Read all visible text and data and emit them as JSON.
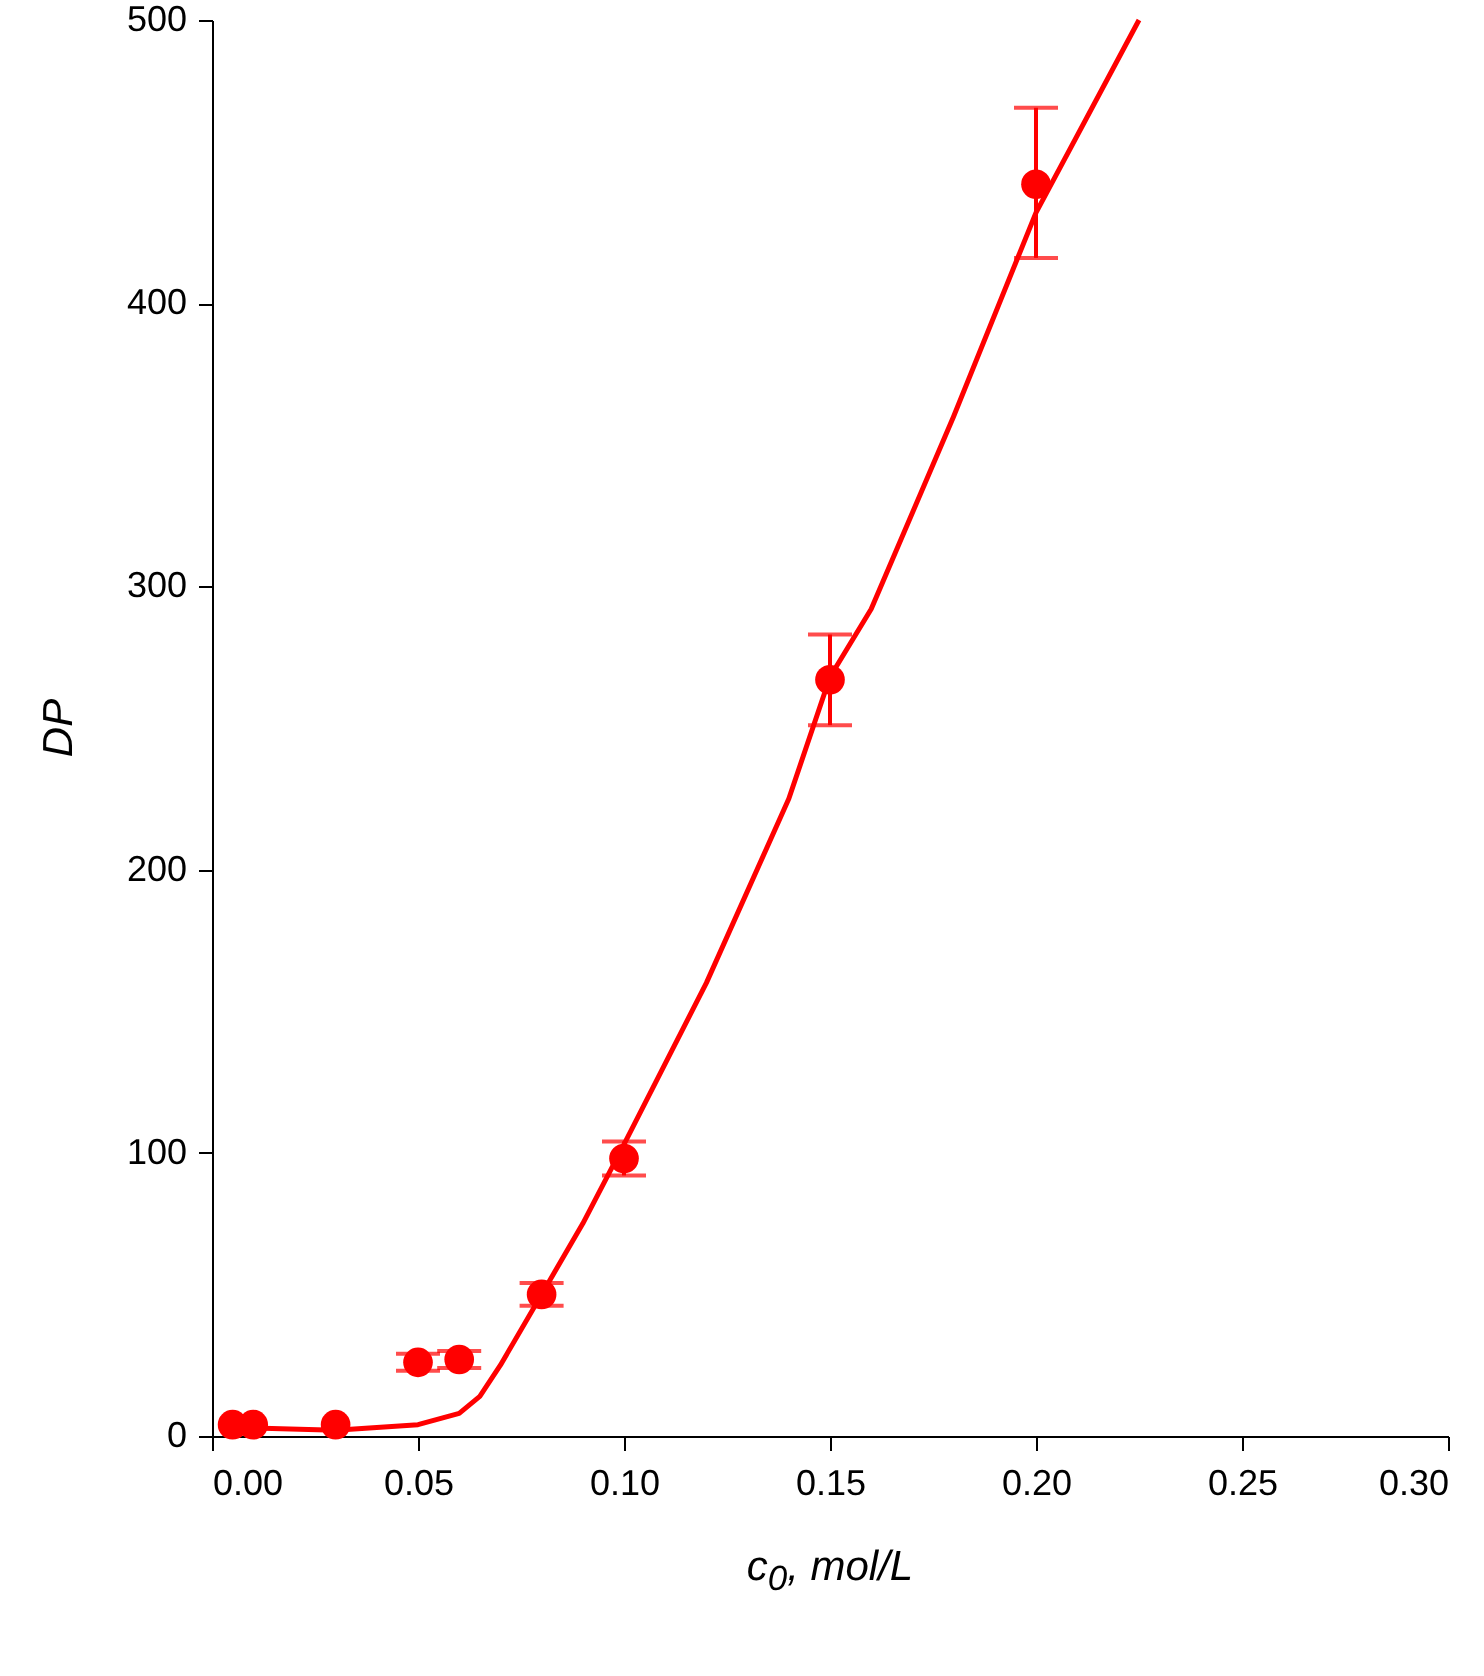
{
  "chart_data": {
    "type": "scatter",
    "xlabel": "c$_{0}$, mol/L",
    "ylabel": "DP",
    "xlim": [
      0,
      0.3
    ],
    "ylim": [
      0,
      500
    ],
    "xticks": [
      {
        "value": 0,
        "label": "0.00"
      },
      {
        "value": 0.05,
        "label": "0.05"
      },
      {
        "value": 0.1,
        "label": "0.10"
      },
      {
        "value": 0.15,
        "label": "0.15"
      },
      {
        "value": 0.2,
        "label": "0.20"
      },
      {
        "value": 0.25,
        "label": "0.25"
      },
      {
        "value": 0.3,
        "label": "0.30"
      }
    ],
    "yticks": [
      0,
      100,
      200,
      300,
      400,
      500
    ],
    "grid": false,
    "series": [
      {
        "marker": "circle",
        "color": "#ff0000",
        "x": [
          0.005,
          0.01,
          0.03,
          0.05,
          0.06,
          0.08,
          0.1,
          0.15,
          0.2
        ],
        "values": [
          4,
          4,
          4,
          26,
          27,
          50,
          98,
          267,
          442
        ],
        "errors": [
          null,
          null,
          null,
          3,
          3,
          4,
          [
            92,
            104
          ],
          [
            251,
            283
          ],
          [
            416,
            469
          ]
        ]
      },
      {
        "type": "line",
        "color": "#ff0000",
        "line_style": "solid",
        "x": [
          0.005,
          0.03,
          0.05,
          0.06,
          0.065,
          0.07,
          0.08,
          0.09,
          0.1,
          0.12,
          0.14,
          0.15,
          0.16,
          0.18,
          0.2,
          0.225
        ],
        "values": [
          3,
          2,
          4,
          8,
          14,
          25,
          50,
          75,
          103,
          160,
          225,
          268,
          292,
          360,
          432,
          500
        ]
      }
    ]
  }
}
